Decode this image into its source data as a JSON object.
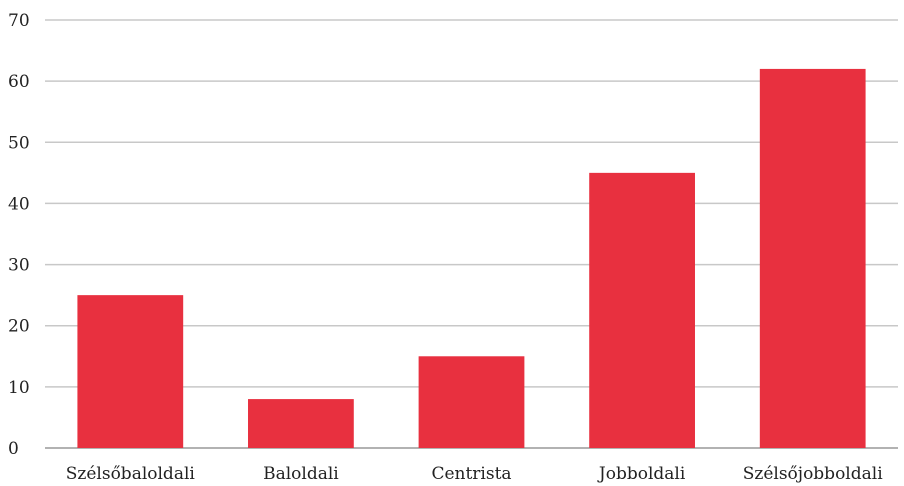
{
  "chart_data": {
    "type": "bar",
    "categories": [
      "Szélsőbaloldali",
      "Baloldali",
      "Centrista",
      "Jobboldali",
      "Szélsőjobboldali"
    ],
    "values": [
      25,
      8,
      15,
      45,
      62
    ],
    "ylim": [
      0,
      70
    ],
    "yticks": [
      0,
      10,
      20,
      30,
      40,
      50,
      60,
      70
    ],
    "grid": true,
    "bar_color": "#e8303f",
    "title": "",
    "xlabel": "",
    "ylabel": ""
  }
}
